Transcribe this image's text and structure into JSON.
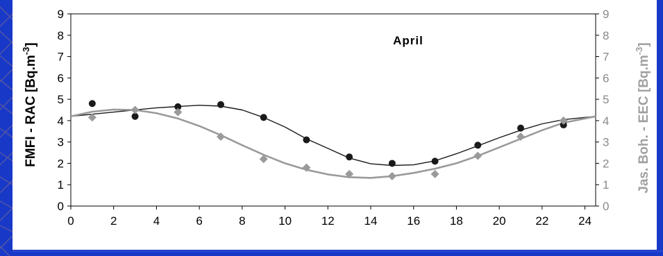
{
  "colors": {
    "background": "#1838c8",
    "panel": "#ffffff",
    "series_fmfi": "#1a1a1a",
    "series_jas": "#9a9a9a",
    "right_axis_label": "#a0a0a0"
  },
  "chart_data": {
    "type": "scatter",
    "title": "April",
    "xlabel": "",
    "ylabel": "FMFI - RAC [Bq.m-3]",
    "ylabel_right": "Jas. Boh. - EEC [Bq.m-3]",
    "ylabel_parts": {
      "prefix": "FMFI - RAC [Bq.m",
      "sup": "-3",
      "suffix": "]"
    },
    "ylabel_right_parts": {
      "prefix": "Jas. Boh. - EEC [Bq.m",
      "sup": "-3",
      "suffix": "]"
    },
    "xlim": [
      0,
      24.5
    ],
    "ylim": [
      0,
      9
    ],
    "ylim_right": [
      0,
      9
    ],
    "x_ticks": [
      0,
      2,
      4,
      6,
      8,
      10,
      12,
      14,
      16,
      18,
      20,
      22,
      24
    ],
    "y_ticks": [
      0,
      1,
      2,
      3,
      4,
      5,
      6,
      7,
      8,
      9
    ],
    "grid": false,
    "legend": "none",
    "series": [
      {
        "marker": "circle",
        "axis": "left",
        "x": [
          1,
          3,
          5,
          7,
          9,
          11,
          13,
          15,
          17,
          19,
          21,
          23
        ],
        "y": [
          4.8,
          4.2,
          4.65,
          4.75,
          4.15,
          3.1,
          2.3,
          2.0,
          2.1,
          2.85,
          3.65,
          3.8
        ],
        "fit_line": {
          "x": [
            0,
            2,
            4,
            6,
            7,
            8,
            9,
            10,
            11,
            12,
            13,
            14,
            15,
            16,
            17,
            18,
            19,
            20,
            21,
            22,
            23,
            24.5
          ],
          "y": [
            4.2,
            4.4,
            4.6,
            4.72,
            4.68,
            4.5,
            4.15,
            3.7,
            3.15,
            2.7,
            2.25,
            1.98,
            1.9,
            1.93,
            2.12,
            2.45,
            2.82,
            3.2,
            3.55,
            3.85,
            4.05,
            4.2
          ]
        }
      },
      {
        "marker": "diamond",
        "axis": "right",
        "x": [
          1,
          3,
          5,
          7,
          9,
          11,
          13,
          15,
          17,
          19,
          21,
          23
        ],
        "y": [
          4.15,
          4.5,
          4.4,
          3.25,
          2.2,
          1.8,
          1.5,
          1.4,
          1.5,
          2.35,
          3.25,
          4.0
        ],
        "fit_line": {
          "x": [
            0,
            1,
            2,
            3,
            4,
            5,
            6,
            7,
            8,
            9,
            10,
            11,
            12,
            13,
            14,
            15,
            16,
            17,
            18,
            19,
            20,
            21,
            22,
            23,
            24.5
          ],
          "y": [
            4.2,
            4.42,
            4.52,
            4.5,
            4.35,
            4.1,
            3.75,
            3.32,
            2.85,
            2.4,
            2.0,
            1.7,
            1.48,
            1.35,
            1.32,
            1.4,
            1.55,
            1.75,
            2.0,
            2.35,
            2.75,
            3.15,
            3.55,
            3.9,
            4.2
          ]
        }
      }
    ]
  }
}
